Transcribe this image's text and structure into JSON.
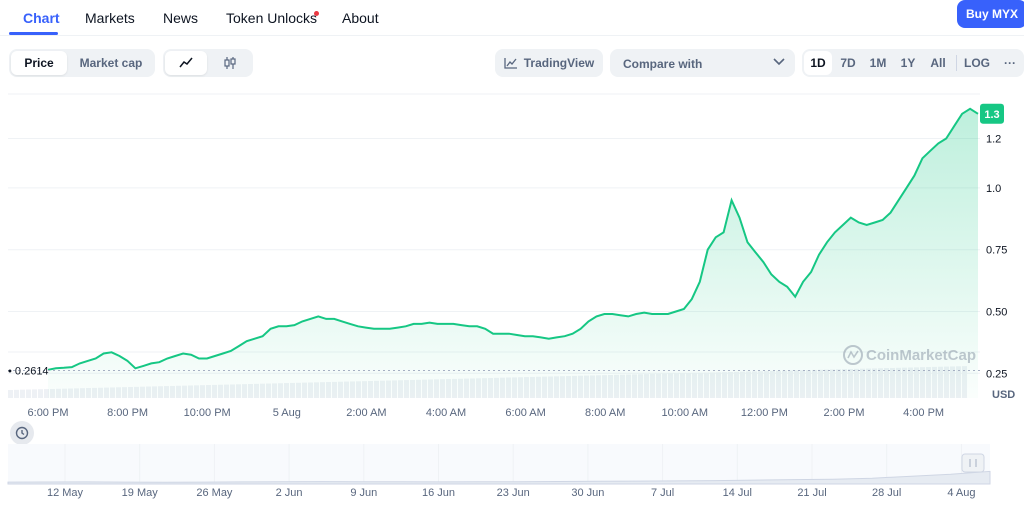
{
  "nav": {
    "tabs": [
      {
        "label": "Chart",
        "active": true
      },
      {
        "label": "Markets"
      },
      {
        "label": "News"
      },
      {
        "label": "Token Unlocks"
      },
      {
        "label": "About"
      }
    ],
    "buy_label": "Buy MYX"
  },
  "toolbar": {
    "price_label": "Price",
    "marketcap_label": "Market cap",
    "line_icon": "line-chart-icon",
    "candle_icon": "candlestick-icon",
    "tradingview_label": "TradingView",
    "compare_label": "Compare with",
    "ranges": [
      "1D",
      "7D",
      "1M",
      "1Y",
      "All"
    ],
    "selected_range": "1D",
    "log_label": "LOG",
    "more_label": "···"
  },
  "colors": {
    "accent": "#3861fb",
    "line": "#16c784",
    "badge": "#16c784"
  },
  "chart_data": [
    {
      "type": "area",
      "x_ticks": [
        "6:00 PM",
        "8:00 PM",
        "10:00 PM",
        "5 Aug",
        "2:00 AM",
        "4:00 AM",
        "6:00 AM",
        "8:00 AM",
        "10:00 AM",
        "12:00 PM",
        "2:00 PM",
        "4:00 PM"
      ],
      "y_ticks": [
        "0.25",
        "0.50",
        "0.75",
        "1.0",
        "1.2"
      ],
      "ylim": [
        0.15,
        1.38
      ],
      "y_unit": "USD",
      "open_price_label": "0.2614",
      "open_price": 0.2614,
      "current_price_label": "1.3",
      "current_price": 1.3,
      "watermark": "CoinMarketCap",
      "series": [
        {
          "x": [
            0,
            0.2,
            0.4,
            0.6,
            0.8,
            1.0,
            1.2,
            1.4,
            1.6,
            1.8,
            2.0,
            2.2,
            2.4,
            2.6,
            2.8,
            3.0,
            3.2,
            3.4,
            3.6,
            3.8,
            4.0,
            4.2,
            4.4,
            4.6,
            4.8,
            5.0,
            5.2,
            5.4,
            5.6,
            5.8,
            6.0,
            6.2,
            6.4,
            6.6,
            6.8,
            7.0,
            7.2,
            7.4,
            7.6,
            7.8,
            8.0,
            8.2,
            8.4,
            8.6,
            8.8,
            9.0,
            9.2,
            9.4,
            9.6,
            9.8,
            10.0,
            10.2,
            10.4,
            10.6,
            10.8,
            11.0,
            11.2,
            11.4,
            11.6,
            11.8,
            12.0,
            12.2,
            12.4,
            12.6,
            12.8,
            13.0,
            13.2,
            13.4,
            13.6,
            13.8,
            14.0,
            14.2,
            14.4,
            14.6,
            14.8,
            15.0,
            15.2,
            15.4,
            15.6,
            15.8,
            16.0,
            16.2,
            16.4,
            16.6,
            16.8,
            17.0,
            17.2,
            17.4,
            17.6,
            17.8,
            18.0,
            18.2,
            18.4,
            18.6,
            18.8,
            19.0,
            19.2,
            19.4,
            19.6,
            19.8,
            20.0,
            20.2,
            20.4,
            20.6,
            20.8,
            21.0,
            21.2,
            21.4,
            21.6,
            21.8,
            22.0,
            22.2,
            22.4,
            22.6,
            22.8,
            23.0,
            23.2,
            23.4
          ],
          "values": [
            0.264,
            0.27,
            0.272,
            0.275,
            0.29,
            0.3,
            0.31,
            0.33,
            0.335,
            0.32,
            0.3,
            0.27,
            0.28,
            0.29,
            0.295,
            0.31,
            0.32,
            0.33,
            0.325,
            0.31,
            0.31,
            0.32,
            0.33,
            0.34,
            0.36,
            0.38,
            0.39,
            0.4,
            0.43,
            0.44,
            0.44,
            0.445,
            0.46,
            0.47,
            0.48,
            0.47,
            0.47,
            0.46,
            0.45,
            0.44,
            0.435,
            0.43,
            0.43,
            0.43,
            0.435,
            0.44,
            0.45,
            0.45,
            0.455,
            0.45,
            0.45,
            0.45,
            0.445,
            0.44,
            0.44,
            0.43,
            0.41,
            0.41,
            0.41,
            0.405,
            0.4,
            0.4,
            0.395,
            0.39,
            0.395,
            0.4,
            0.41,
            0.43,
            0.46,
            0.48,
            0.49,
            0.49,
            0.485,
            0.48,
            0.49,
            0.495,
            0.49,
            0.49,
            0.49,
            0.5,
            0.51,
            0.55,
            0.62,
            0.75,
            0.8,
            0.82,
            0.95,
            0.88,
            0.78,
            0.74,
            0.7,
            0.65,
            0.62,
            0.6,
            0.56,
            0.62,
            0.66,
            0.73,
            0.78,
            0.82,
            0.85,
            0.88,
            0.86,
            0.85,
            0.86,
            0.87,
            0.9,
            0.95,
            1.0,
            1.05,
            1.12,
            1.15,
            1.18,
            1.2,
            1.25,
            1.3,
            1.32,
            1.3
          ]
        }
      ]
    },
    {
      "type": "area",
      "x_ticks": [
        "12 May",
        "19 May",
        "26 May",
        "2 Jun",
        "9 Jun",
        "16 Jun",
        "23 Jun",
        "30 Jun",
        "7 Jul",
        "14 Jul",
        "21 Jul",
        "28 Jul",
        "4 Aug"
      ],
      "series": [
        {
          "values": [
            0.2,
            0.21,
            0.22,
            0.2,
            0.19,
            0.2,
            0.22,
            0.24,
            0.25,
            0.24,
            0.23,
            0.22,
            0.23,
            0.24,
            0.26,
            0.28,
            0.3,
            0.32,
            0.35,
            0.4,
            0.45,
            0.5,
            0.6,
            0.8,
            1.0,
            1.3
          ]
        }
      ]
    }
  ]
}
